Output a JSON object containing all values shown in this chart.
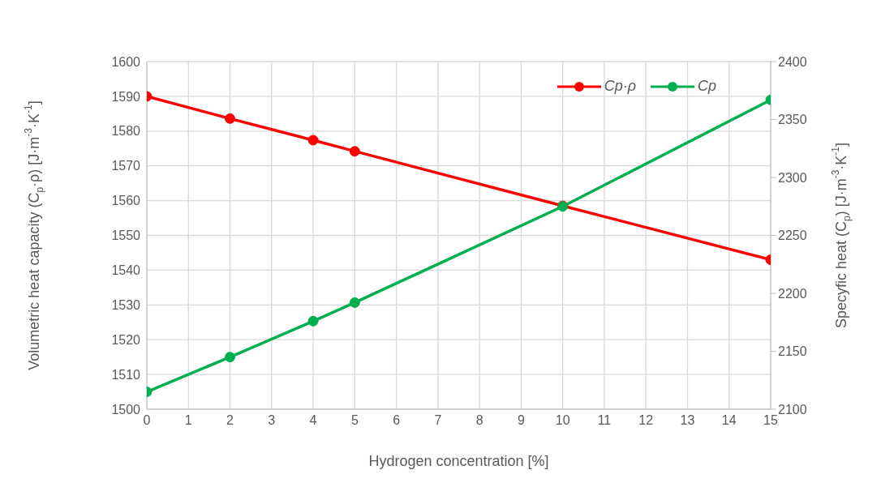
{
  "chart_data": {
    "type": "line",
    "xlabel": "Hydrogen concentration [%]",
    "ylabel": "Volumetric heat capacity (C$_{p}$·ρ) [J·m$^{-3}$·K$^{-1}$]",
    "y2label": "Specyfic heat (C$_{p}$) [J·m$^{-3}$·K$^{-1}$]",
    "x": [
      0,
      2,
      4,
      5,
      10,
      15
    ],
    "series": [
      {
        "name": "Cp·ρ",
        "color": "#ff0000",
        "values": [
          1590,
          1583.6,
          1577.4,
          1574.2,
          1558.5,
          1543
        ]
      },
      {
        "name": "Cp",
        "color": "#00b050",
        "axis": "y2",
        "values": [
          2115,
          2145,
          2176,
          2192,
          2275,
          2367
        ]
      }
    ],
    "xlim": [
      0,
      15
    ],
    "xticks": [
      0,
      1,
      2,
      3,
      4,
      5,
      6,
      7,
      8,
      9,
      10,
      11,
      12,
      13,
      14,
      15
    ],
    "ylim": [
      1500,
      1600
    ],
    "yticks": [
      1500,
      1510,
      1520,
      1530,
      1540,
      1550,
      1560,
      1570,
      1580,
      1590,
      1600
    ],
    "y2lim": [
      2100,
      2400
    ],
    "y2ticks": [
      2100,
      2150,
      2200,
      2250,
      2300,
      2350,
      2400
    ],
    "grid": true,
    "legend": "top right",
    "marker": "circle",
    "line_style": "solid"
  }
}
